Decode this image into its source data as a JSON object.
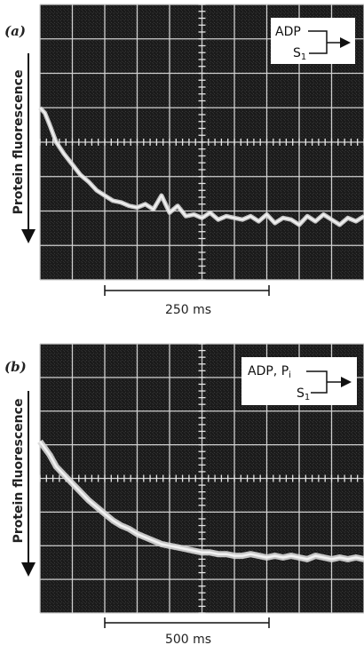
{
  "chart_data": [
    {
      "panel": "(a)",
      "type": "line",
      "ylabel": "Protein fluorescence",
      "scale_bar": "250 ms",
      "legend": {
        "line1": "ADP",
        "line2": "S",
        "line2_sub": "1"
      },
      "grid": true,
      "xlim": [
        0,
        10
      ],
      "ylim": [
        0,
        8
      ],
      "series": [
        {
          "x": [
            0.0,
            0.15,
            0.3,
            0.5,
            0.75,
            1.0,
            1.25,
            1.5,
            1.75,
            2.0,
            2.25,
            2.5,
            2.75,
            3.0,
            3.25,
            3.5,
            3.75,
            4.0,
            4.25,
            4.5,
            4.75,
            5.0,
            5.25,
            5.5,
            5.75,
            6.0,
            6.25,
            6.5,
            6.75,
            7.0,
            7.25,
            7.5,
            7.75,
            8.0,
            8.25,
            8.5,
            8.75,
            9.0,
            9.25,
            9.5,
            9.75,
            10.0
          ],
          "y": [
            5.0,
            4.85,
            4.5,
            4.0,
            3.65,
            3.35,
            3.05,
            2.85,
            2.6,
            2.45,
            2.3,
            2.25,
            2.15,
            2.1,
            2.2,
            2.05,
            2.45,
            1.95,
            2.15,
            1.85,
            1.9,
            1.8,
            1.95,
            1.75,
            1.85,
            1.8,
            1.75,
            1.85,
            1.7,
            1.9,
            1.65,
            1.8,
            1.75,
            1.6,
            1.85,
            1.7,
            1.9,
            1.75,
            1.6,
            1.8,
            1.7,
            1.85
          ]
        }
      ]
    },
    {
      "panel": "(b)",
      "type": "line",
      "ylabel": "Protein fluorescence",
      "scale_bar": "500 ms",
      "legend": {
        "line1": "ADP, P",
        "line1_sub": "i",
        "line2": "S",
        "line2_sub": "1"
      },
      "grid": true,
      "xlim": [
        0,
        10
      ],
      "ylim": [
        0,
        8
      ],
      "series": [
        {
          "x": [
            0.0,
            0.15,
            0.3,
            0.5,
            0.75,
            1.0,
            1.25,
            1.5,
            1.75,
            2.0,
            2.25,
            2.5,
            2.75,
            3.0,
            3.25,
            3.5,
            3.75,
            4.0,
            4.25,
            4.5,
            4.75,
            5.0,
            5.25,
            5.5,
            5.75,
            6.0,
            6.25,
            6.5,
            6.75,
            7.0,
            7.25,
            7.5,
            7.75,
            8.0,
            8.25,
            8.5,
            8.75,
            9.0,
            9.25,
            9.5,
            9.75,
            10.0
          ],
          "y": [
            5.1,
            4.9,
            4.7,
            4.35,
            4.1,
            3.85,
            3.6,
            3.35,
            3.15,
            2.95,
            2.75,
            2.6,
            2.5,
            2.35,
            2.25,
            2.15,
            2.05,
            2.0,
            1.95,
            1.9,
            1.85,
            1.8,
            1.8,
            1.75,
            1.75,
            1.7,
            1.7,
            1.75,
            1.7,
            1.65,
            1.7,
            1.65,
            1.7,
            1.65,
            1.6,
            1.7,
            1.65,
            1.6,
            1.65,
            1.6,
            1.65,
            1.6
          ]
        }
      ]
    }
  ]
}
